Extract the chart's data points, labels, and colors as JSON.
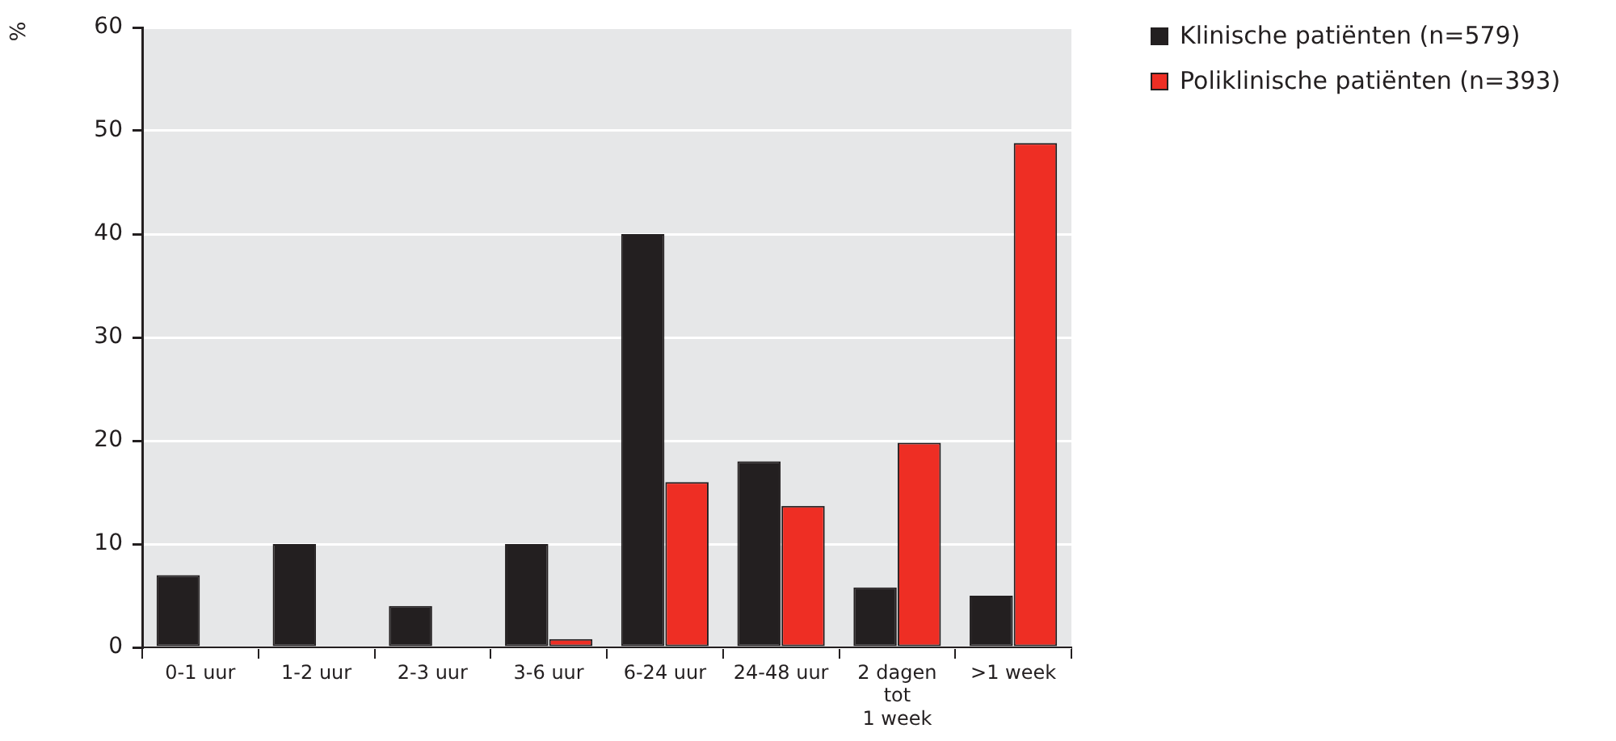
{
  "chart_data": {
    "type": "bar",
    "ylabel": "%",
    "categories": [
      "0-1 uur",
      "1-2 uur",
      "2-3 uur",
      "3-6 uur",
      "6-24 uur",
      "24-48 uur",
      "2 dagen\ntot\n1 week",
      ">1 week"
    ],
    "series": [
      {
        "name": "Klinische patiënten (n=579)",
        "color": "#231f20",
        "values": [
          7,
          10,
          4,
          10,
          40,
          18,
          5.8,
          5
        ]
      },
      {
        "name": "Poliklinische patiënten (n=393)",
        "color": "#ee2e24",
        "values": [
          null,
          null,
          null,
          0.8,
          16,
          13.7,
          19.8,
          48.8
        ]
      }
    ],
    "ylim": [
      0,
      60
    ],
    "yticks": [
      0,
      10,
      20,
      30,
      40,
      50,
      60
    ],
    "grid": "y",
    "legend": "top right"
  }
}
